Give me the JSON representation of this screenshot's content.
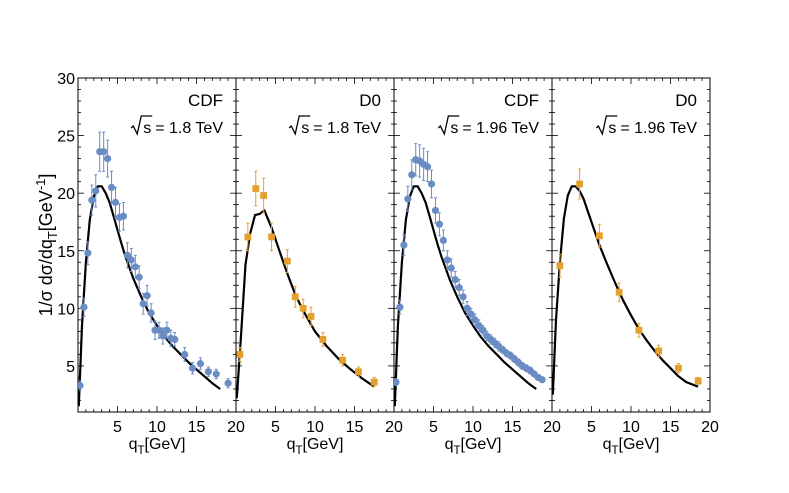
{
  "colors": {
    "blue": "#6A8CC5",
    "orange": "#E3A02F",
    "curve": "#000000"
  },
  "ylabel": "1/σ dσ/dq_T[GeV^-1]",
  "chart_data": [
    {
      "type": "scatter",
      "panel_label": "CDF",
      "energy_value": "= 1.8 TeV",
      "xlabel": "q_T[GeV]",
      "xlim": [
        0,
        20
      ],
      "ylim": [
        1,
        30
      ],
      "xticks": [
        "5",
        "10",
        "15",
        "20"
      ],
      "yticks": [
        "5",
        "10",
        "15",
        "20",
        "25",
        "30"
      ],
      "marker": "circle",
      "color": "blue",
      "series": [
        {
          "name": "CDF data",
          "x": [
            0.25,
            0.75,
            1.25,
            1.75,
            2.25,
            2.75,
            3.25,
            3.75,
            4.25,
            4.75,
            5.25,
            5.75,
            6.25,
            6.75,
            7.25,
            7.75,
            8.25,
            8.75,
            9.25,
            9.75,
            10.25,
            10.75,
            11.25,
            11.75,
            12.25,
            13.5,
            14.5,
            15.5,
            16.5,
            17.5,
            19
          ],
          "y": [
            3.3,
            10.1,
            14.8,
            19.4,
            20.2,
            23.6,
            23.6,
            23.0,
            20.5,
            19.2,
            17.9,
            18.0,
            14.6,
            14.2,
            13.6,
            12.7,
            10.4,
            11.1,
            9.6,
            8.1,
            8.1,
            7.6,
            8.1,
            7.4,
            7.3,
            6.0,
            4.8,
            5.2,
            4.5,
            4.3,
            3.5
          ],
          "err": [
            0.4,
            0.8,
            1.0,
            1.3,
            1.4,
            1.7,
            1.7,
            1.6,
            1.4,
            1.3,
            1.2,
            1.2,
            1.1,
            1.0,
            1.0,
            1.0,
            0.9,
            0.9,
            0.8,
            0.8,
            0.7,
            0.7,
            0.7,
            0.7,
            0.6,
            0.6,
            0.5,
            0.5,
            0.4,
            0.4,
            0.4
          ]
        }
      ],
      "curve": {
        "name": "theory",
        "x": [
          0.1,
          0.5,
          1,
          1.5,
          2,
          2.5,
          3,
          3.5,
          4,
          4.5,
          5,
          5.5,
          6,
          7,
          8,
          9,
          10,
          11,
          12,
          13,
          14,
          15,
          16,
          17,
          18
        ],
        "y": [
          1.5,
          8.5,
          14.0,
          17.7,
          19.7,
          20.6,
          20.6,
          20.0,
          19.2,
          18.0,
          16.8,
          15.6,
          14.5,
          12.6,
          11.0,
          9.6,
          8.5,
          7.5,
          6.7,
          6.0,
          5.3,
          4.7,
          4.1,
          3.5,
          3.0
        ]
      }
    },
    {
      "type": "scatter",
      "panel_label": "D0",
      "energy_value": "= 1.8 TeV",
      "xlabel": "q_T[GeV]",
      "xlim": [
        0,
        20
      ],
      "ylim": [
        1,
        30
      ],
      "xticks": [
        "5",
        "10",
        "15",
        "20"
      ],
      "yticks": [],
      "marker": "square",
      "color": "orange",
      "series": [
        {
          "name": "D0 data",
          "x": [
            0.5,
            1.5,
            2.5,
            3.5,
            4.5,
            6.5,
            7.5,
            8.5,
            9.5,
            11,
            13.5,
            15.5,
            17.5
          ],
          "y": [
            6.0,
            16.2,
            20.4,
            19.8,
            16.2,
            14.1,
            11.0,
            10.0,
            9.3,
            7.3,
            5.5,
            4.5,
            3.6
          ],
          "err": [
            0.6,
            1.2,
            1.5,
            1.5,
            1.2,
            1.0,
            0.9,
            0.8,
            0.8,
            0.6,
            0.5,
            0.4,
            0.4
          ]
        }
      ],
      "curve": {
        "name": "theory",
        "x": [
          0.1,
          0.6,
          1.2,
          1.8,
          2.4,
          3.0,
          3.6,
          4.5,
          5.5,
          6.5,
          7.5,
          8.5,
          10,
          11.5,
          13,
          14.5,
          16,
          17.5
        ],
        "y": [
          2.2,
          7.2,
          13.8,
          16.5,
          18.1,
          18.2,
          18.5,
          17.0,
          15.0,
          13.0,
          11.2,
          9.8,
          8.0,
          6.7,
          5.6,
          4.7,
          3.9,
          3.2
        ]
      }
    },
    {
      "type": "scatter",
      "panel_label": "CDF",
      "energy_value": "= 1.96 TeV",
      "xlabel": "q_T[GeV]",
      "xlim": [
        0,
        20
      ],
      "ylim": [
        1,
        30
      ],
      "xticks": [
        "5",
        "10",
        "15",
        "20"
      ],
      "yticks": [],
      "marker": "circle",
      "color": "blue",
      "series": [
        {
          "name": "CDF data",
          "x": [
            0.25,
            0.75,
            1.25,
            1.75,
            2.25,
            2.75,
            3.25,
            3.75,
            4.25,
            4.75,
            5.25,
            5.75,
            6.25,
            6.75,
            7.25,
            7.75,
            8.25,
            8.75,
            9.25,
            9.75,
            10.25,
            10.75,
            11.25,
            11.75,
            12.25,
            12.75,
            13.25,
            13.75,
            14.25,
            14.75,
            15.25,
            15.75,
            16.25,
            16.75,
            17.25,
            17.75,
            18.25,
            18.75
          ],
          "y": [
            3.6,
            10.1,
            15.5,
            19.5,
            21.6,
            22.9,
            22.8,
            22.5,
            22.3,
            20.8,
            18.5,
            17.3,
            15.9,
            14.2,
            13.5,
            12.5,
            11.8,
            11.0,
            10.0,
            9.5,
            9.0,
            8.5,
            8.1,
            7.6,
            7.3,
            7.0,
            6.7,
            6.4,
            6.1,
            5.9,
            5.6,
            5.3,
            5.0,
            4.8,
            4.6,
            4.3,
            4.0,
            3.8
          ],
          "err": [
            0.3,
            0.6,
            0.9,
            1.1,
            1.3,
            1.4,
            1.4,
            1.4,
            1.3,
            1.2,
            1.1,
            1.0,
            0.9,
            0.8,
            0.8,
            0.7,
            0.7,
            0.6,
            0.6,
            0.5,
            0.5,
            0.5,
            0.4,
            0.4,
            0.4,
            0.4,
            0.4,
            0.3,
            0.3,
            0.3,
            0.3,
            0.3,
            0.3,
            0.3,
            0.3,
            0.2,
            0.2,
            0.2
          ]
        }
      ],
      "curve": {
        "name": "theory",
        "x": [
          0.1,
          0.5,
          1,
          1.5,
          2,
          2.5,
          3,
          3.5,
          4,
          4.5,
          5,
          5.5,
          6,
          7,
          8,
          9,
          10,
          11,
          12,
          13,
          14,
          15,
          16,
          17,
          18
        ],
        "y": [
          1.5,
          8.5,
          14.0,
          17.7,
          19.7,
          20.6,
          20.6,
          20.0,
          19.2,
          18.0,
          16.8,
          15.6,
          14.5,
          12.6,
          11.0,
          9.6,
          8.5,
          7.5,
          6.7,
          6.0,
          5.3,
          4.7,
          4.1,
          3.5,
          3.0
        ]
      }
    },
    {
      "type": "scatter",
      "panel_label": "D0",
      "energy_value": "= 1.96 TeV",
      "xlabel": "q_T[GeV]",
      "xlim": [
        0,
        20
      ],
      "ylim": [
        1,
        30
      ],
      "xticks": [
        "5",
        "10",
        "15",
        "20"
      ],
      "yticks": [],
      "marker": "square",
      "color": "orange",
      "series": [
        {
          "name": "D0 data",
          "x": [
            1.0,
            3.5,
            6.0,
            8.5,
            11,
            13.5,
            16,
            18.5
          ],
          "y": [
            13.7,
            20.8,
            16.3,
            11.4,
            8.1,
            6.3,
            4.8,
            3.7
          ],
          "err": [
            1.0,
            1.3,
            1.0,
            0.8,
            0.6,
            0.5,
            0.4,
            0.3
          ]
        }
      ],
      "curve": {
        "name": "theory",
        "x": [
          0.1,
          0.5,
          1,
          1.5,
          2,
          2.5,
          3,
          3.5,
          4,
          4.5,
          5,
          6,
          7,
          8,
          9,
          10,
          11,
          12,
          13,
          14,
          15,
          16,
          17,
          18.5
        ],
        "y": [
          2.5,
          9.0,
          14.0,
          17.8,
          19.8,
          20.6,
          20.6,
          20.2,
          19.5,
          18.5,
          17.5,
          15.5,
          13.8,
          12.2,
          10.7,
          9.4,
          8.2,
          7.2,
          6.3,
          5.5,
          4.8,
          4.1,
          3.6,
          3.2
        ]
      }
    }
  ]
}
